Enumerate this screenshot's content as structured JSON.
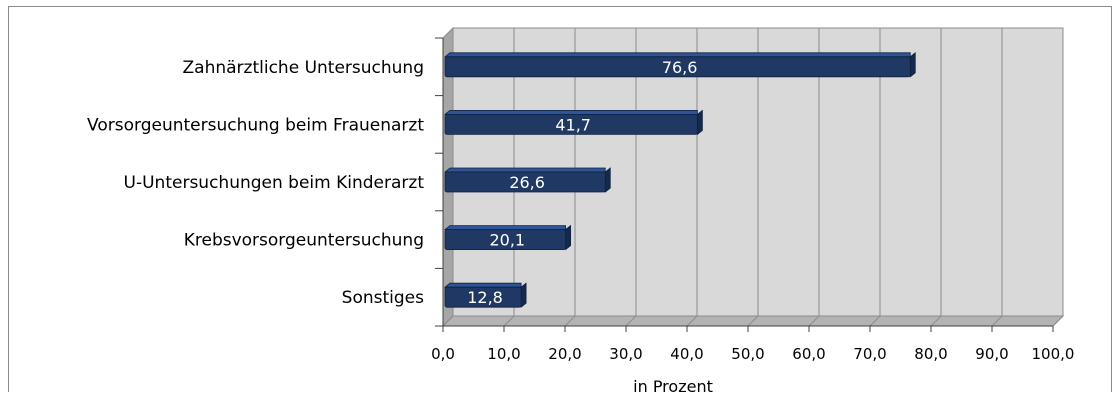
{
  "chart_data": {
    "type": "bar",
    "orientation": "horizontal",
    "categories": [
      "Zahnärztliche Untersuchung",
      "Vorsorgeuntersuchung beim Frauenarzt",
      "U-Untersuchungen beim Kinderarzt",
      "Krebsvorsorgeuntersuchung",
      "Sonstiges"
    ],
    "values": [
      76.6,
      41.7,
      26.6,
      20.1,
      12.8
    ],
    "value_labels": [
      "76,6",
      "41,7",
      "26,6",
      "20,1",
      "12,8"
    ],
    "xlabel": "in Prozent",
    "xlim": [
      0,
      100
    ],
    "xticks": [
      "0,0",
      "10,0",
      "20,0",
      "30,0",
      "40,0",
      "50,0",
      "60,0",
      "70,0",
      "80,0",
      "90,0",
      "100,0"
    ],
    "grid": true,
    "legend": "none",
    "colors": {
      "bar": "#1f3864",
      "bar_top": "#2e5597",
      "wall": "#d9d9d9",
      "floor": "#b3b3b3",
      "grid": "#8c8c8c"
    }
  }
}
